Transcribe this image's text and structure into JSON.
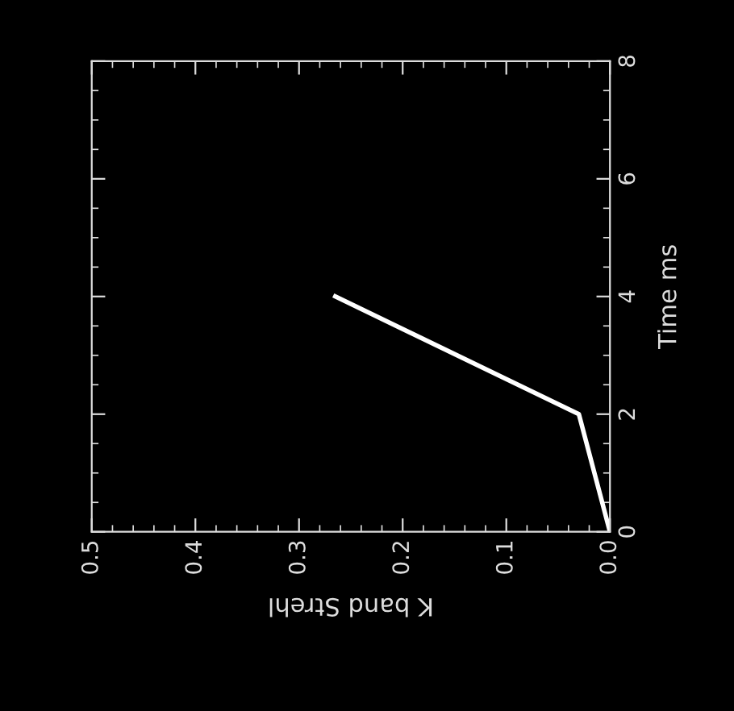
{
  "chart_data": {
    "type": "line",
    "xlabel": "K band Strehl",
    "ylabel": "Time ms",
    "x": [
      0.0,
      0.03,
      0.265
    ],
    "series": [
      {
        "color": "#ffffff",
        "values": [
          0,
          2,
          4
        ]
      }
    ],
    "xlim": [
      0.5,
      0.0
    ],
    "xticks": [
      {
        "value": 0.5,
        "label": "0.5"
      },
      {
        "value": 0.4,
        "label": "0.4"
      },
      {
        "value": 0.3,
        "label": "0.3"
      },
      {
        "value": 0.2,
        "label": "0.2"
      },
      {
        "value": 0.1,
        "label": "0.1"
      },
      {
        "value": 0.0,
        "label": "0.0"
      }
    ],
    "ylim": [
      0,
      8
    ],
    "yticks": [
      0,
      2,
      4,
      6,
      8
    ],
    "grid": false,
    "legend": false,
    "marker": "none",
    "line_style": "solid"
  }
}
